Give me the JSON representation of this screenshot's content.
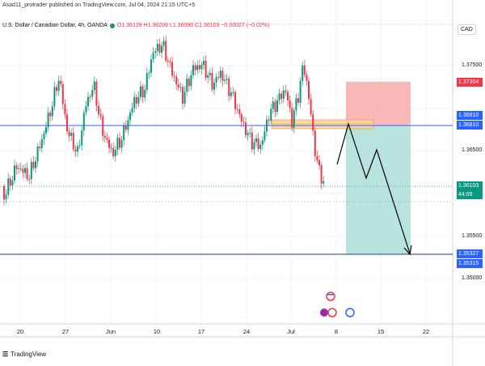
{
  "header": {
    "published": "Asad11_protrader published on TradingView.com, Jul 04, 2024 21:15 UTC+5",
    "symbol": "U.S. Dollar / Canadian Dollar, 4h, OANDA",
    "ohlc": "O1.36129 H1.36208 L1.36090 C1.36103 −0.00027 (−0.02%)",
    "currency": "CAD"
  },
  "price_axis": {
    "ticks": [
      "1.37500",
      "1.36500",
      "1.35500",
      "1.35000"
    ],
    "labels": [
      {
        "text": "1.37304",
        "color": "#F23645"
      },
      {
        "text": "1.36810",
        "color": "#2962FF"
      },
      {
        "text": "1.36810",
        "color": "#2962FF"
      },
      {
        "text": "1.36103",
        "color": "#089981"
      },
      {
        "text": "44:09",
        "color": "#089981"
      },
      {
        "text": "1.35327",
        "color": "#2962FF"
      },
      {
        "text": "1.35315",
        "color": "#2962FF"
      }
    ]
  },
  "time_axis": {
    "ticks": [
      "20",
      "27",
      "Jun",
      "10",
      "17",
      "24",
      "Jul",
      "8",
      "15",
      "22"
    ]
  },
  "footer": {
    "brand": "TradingView"
  },
  "colors": {
    "up": "#089981",
    "down": "#F23645",
    "stop_zone": "#F7A5A5",
    "target_zone": "#A8DDD4",
    "supply_zone": "#FBD49A",
    "level_line": "#2962FF"
  },
  "chart_data": {
    "type": "candlestick",
    "timeframe": "4h",
    "ylim": [
      1.346,
      1.3795
    ],
    "current_price": 1.36103,
    "levels": {
      "entry": 1.3681,
      "stop": 1.37304,
      "target": 1.35327
    }
  }
}
